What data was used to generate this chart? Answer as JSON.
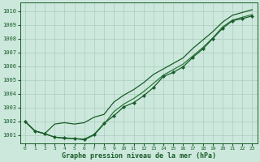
{
  "title": "Graphe pression niveau de la mer (hPa)",
  "bg_color": "#cce8dc",
  "grid_color": "#aaccbb",
  "line_color1": "#1a5c2a",
  "line_color2": "#2d7a3a",
  "xmin": -0.5,
  "xmax": 23.5,
  "ymin": 1000.4,
  "ymax": 1010.6,
  "yticks": [
    1001,
    1002,
    1003,
    1004,
    1005,
    1006,
    1007,
    1008,
    1009,
    1010
  ],
  "xticks": [
    0,
    1,
    2,
    3,
    4,
    5,
    6,
    7,
    8,
    9,
    10,
    11,
    12,
    13,
    14,
    15,
    16,
    17,
    18,
    19,
    20,
    21,
    22,
    23
  ],
  "series1": [
    1002.0,
    1001.3,
    1001.1,
    1001.8,
    1001.9,
    1001.8,
    1001.9,
    1002.3,
    1002.5,
    1003.4,
    1003.9,
    1004.3,
    1004.8,
    1005.4,
    1005.8,
    1006.2,
    1006.6,
    1007.3,
    1007.9,
    1008.5,
    1009.2,
    1009.7,
    1009.9,
    1010.1
  ],
  "series2": [
    1002.0,
    1001.3,
    1001.1,
    1000.85,
    1000.8,
    1000.75,
    1000.7,
    1001.05,
    1001.85,
    1002.4,
    1003.05,
    1003.35,
    1003.85,
    1004.45,
    1005.25,
    1005.55,
    1005.95,
    1006.65,
    1007.25,
    1008.0,
    1008.75,
    1009.3,
    1009.45,
    1009.65
  ],
  "series3": [
    1002.0,
    1001.3,
    1001.1,
    1000.85,
    1000.75,
    1000.75,
    1000.65,
    1001.0,
    1001.8,
    1002.7,
    1003.25,
    1003.65,
    1004.15,
    1004.75,
    1005.35,
    1005.75,
    1006.15,
    1006.75,
    1007.35,
    1008.05,
    1008.85,
    1009.35,
    1009.55,
    1009.75
  ]
}
